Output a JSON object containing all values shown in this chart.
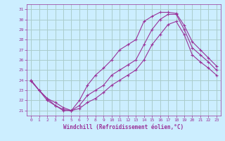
{
  "xlabel": "Windchill (Refroidissement éolien,°C)",
  "background_color": "#cceeff",
  "grid_color": "#aacccc",
  "line_color": "#993399",
  "xlim": [
    -0.5,
    23.5
  ],
  "ylim": [
    20.5,
    31.5
  ],
  "xticks": [
    0,
    1,
    2,
    3,
    4,
    5,
    6,
    7,
    8,
    9,
    10,
    11,
    12,
    13,
    14,
    15,
    16,
    17,
    18,
    19,
    20,
    21,
    22,
    23
  ],
  "yticks": [
    21,
    22,
    23,
    24,
    25,
    26,
    27,
    28,
    29,
    30,
    31
  ],
  "lines": [
    {
      "x": [
        0,
        1,
        2,
        3,
        4,
        5,
        6,
        7,
        8,
        9,
        10,
        11,
        12,
        13,
        14,
        15,
        16,
        17,
        18,
        19,
        20,
        21,
        22,
        23
      ],
      "y": [
        24.0,
        23.0,
        22.2,
        21.5,
        21.1,
        21.0,
        22.0,
        23.5,
        24.5,
        25.2,
        26.0,
        27.0,
        27.5,
        28.0,
        29.8,
        30.3,
        30.7,
        30.7,
        30.6,
        29.4,
        27.8,
        27.0,
        26.2,
        25.4
      ]
    },
    {
      "x": [
        0,
        1,
        2,
        3,
        4,
        5,
        6,
        7,
        8,
        9,
        10,
        11,
        12,
        13,
        14,
        15,
        16,
        17,
        18,
        19,
        20,
        21,
        22,
        23
      ],
      "y": [
        24.0,
        23.0,
        22.2,
        21.8,
        21.3,
        21.0,
        21.5,
        22.5,
        23.0,
        23.5,
        24.5,
        25.0,
        25.5,
        26.0,
        27.5,
        29.0,
        30.0,
        30.5,
        30.5,
        29.0,
        27.2,
        26.5,
        25.8,
        25.0
      ]
    },
    {
      "x": [
        0,
        1,
        2,
        3,
        4,
        5,
        6,
        7,
        8,
        9,
        10,
        11,
        12,
        13,
        14,
        15,
        16,
        17,
        18,
        19,
        20,
        21,
        22,
        23
      ],
      "y": [
        23.9,
        23.0,
        22.0,
        21.5,
        21.0,
        21.0,
        21.2,
        21.8,
        22.2,
        22.8,
        23.5,
        24.0,
        24.5,
        25.0,
        26.0,
        27.5,
        28.5,
        29.5,
        29.8,
        28.5,
        26.5,
        25.8,
        25.2,
        24.5
      ]
    }
  ]
}
